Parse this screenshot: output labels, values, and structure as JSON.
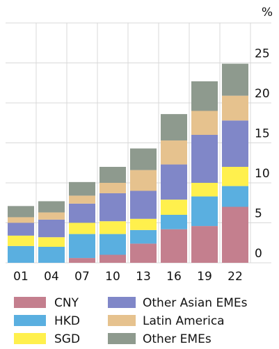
{
  "chart_data": {
    "type": "stacked_bar",
    "y_label": "%",
    "categories": [
      "01",
      "04",
      "07",
      "10",
      "13",
      "16",
      "19",
      "22"
    ],
    "series": [
      {
        "name": "CNY",
        "color": "#c47f8e",
        "values": [
          0,
          0,
          0.6,
          1.0,
          2.4,
          4.2,
          4.6,
          7.0
        ]
      },
      {
        "name": "HKD",
        "color": "#5aafe0",
        "values": [
          2.1,
          2.0,
          3.0,
          2.6,
          1.7,
          1.8,
          3.7,
          2.6
        ]
      },
      {
        "name": "SGD",
        "color": "#fff04d",
        "values": [
          1.3,
          1.2,
          1.4,
          1.6,
          1.4,
          1.9,
          1.7,
          2.4
        ]
      },
      {
        "name": "Other Asian EMEs",
        "color": "#8087c8",
        "values": [
          1.6,
          2.2,
          2.4,
          3.5,
          3.5,
          4.4,
          6.0,
          5.8
        ]
      },
      {
        "name": "Latin America",
        "color": "#e6c28e",
        "values": [
          0.7,
          0.9,
          1.0,
          1.3,
          2.6,
          3.0,
          3.0,
          3.1
        ]
      },
      {
        "name": "Other EMEs",
        "color": "#8e9a8e",
        "values": [
          1.4,
          1.4,
          1.7,
          2.0,
          2.7,
          3.3,
          3.7,
          4.0
        ]
      }
    ],
    "ylim": [
      0,
      30
    ],
    "yticks": [
      0,
      5,
      10,
      15,
      20,
      25
    ],
    "grid": true
  }
}
